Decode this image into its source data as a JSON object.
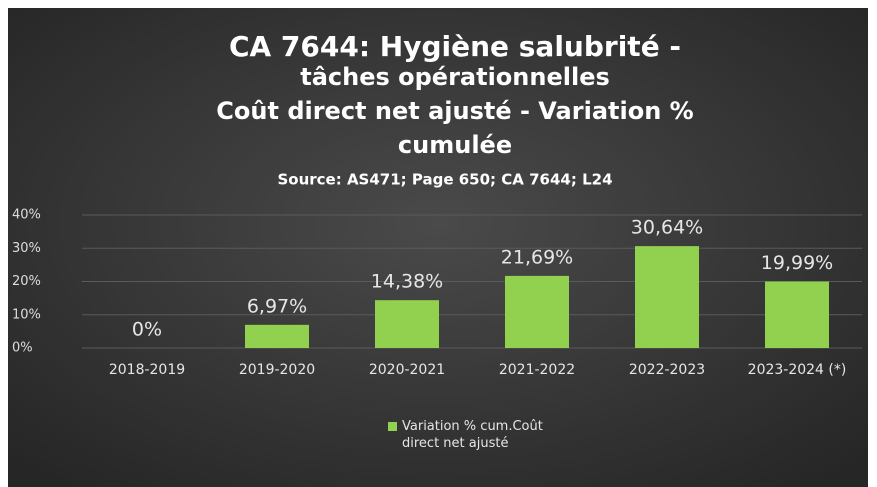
{
  "chart_data": {
    "type": "bar",
    "title": [
      "CA 7644: Hygiène salubrité -",
      "tâches opérationnelles",
      "Coût direct net ajusté - Variation %",
      "cumulée"
    ],
    "subtitle": "Source: AS471; Page 650; CA 7644; L24",
    "categories": [
      "2018-2019",
      "2019-2020",
      "2020-2021",
      "2021-2022",
      "2022-2023",
      "2023-2024 (*)"
    ],
    "series": [
      {
        "name": "Variation % cum.Coût direct net ajusté",
        "color": "#92d050",
        "values": [
          0,
          6.97,
          14.38,
          21.69,
          30.64,
          19.99
        ],
        "value_labels": [
          "0%",
          "6,97%",
          "14,38%",
          "21,69%",
          "30,64%",
          "19,99%"
        ]
      }
    ],
    "ylim": [
      0,
      40
    ],
    "yticks": [
      {
        "value": 0,
        "label": "0%"
      },
      {
        "value": 10,
        "label": "10%"
      },
      {
        "value": 20,
        "label": "20%"
      },
      {
        "value": 30,
        "label": "30%"
      },
      {
        "value": 40,
        "label": "40%"
      }
    ],
    "grid": true,
    "legend": "bottom"
  }
}
